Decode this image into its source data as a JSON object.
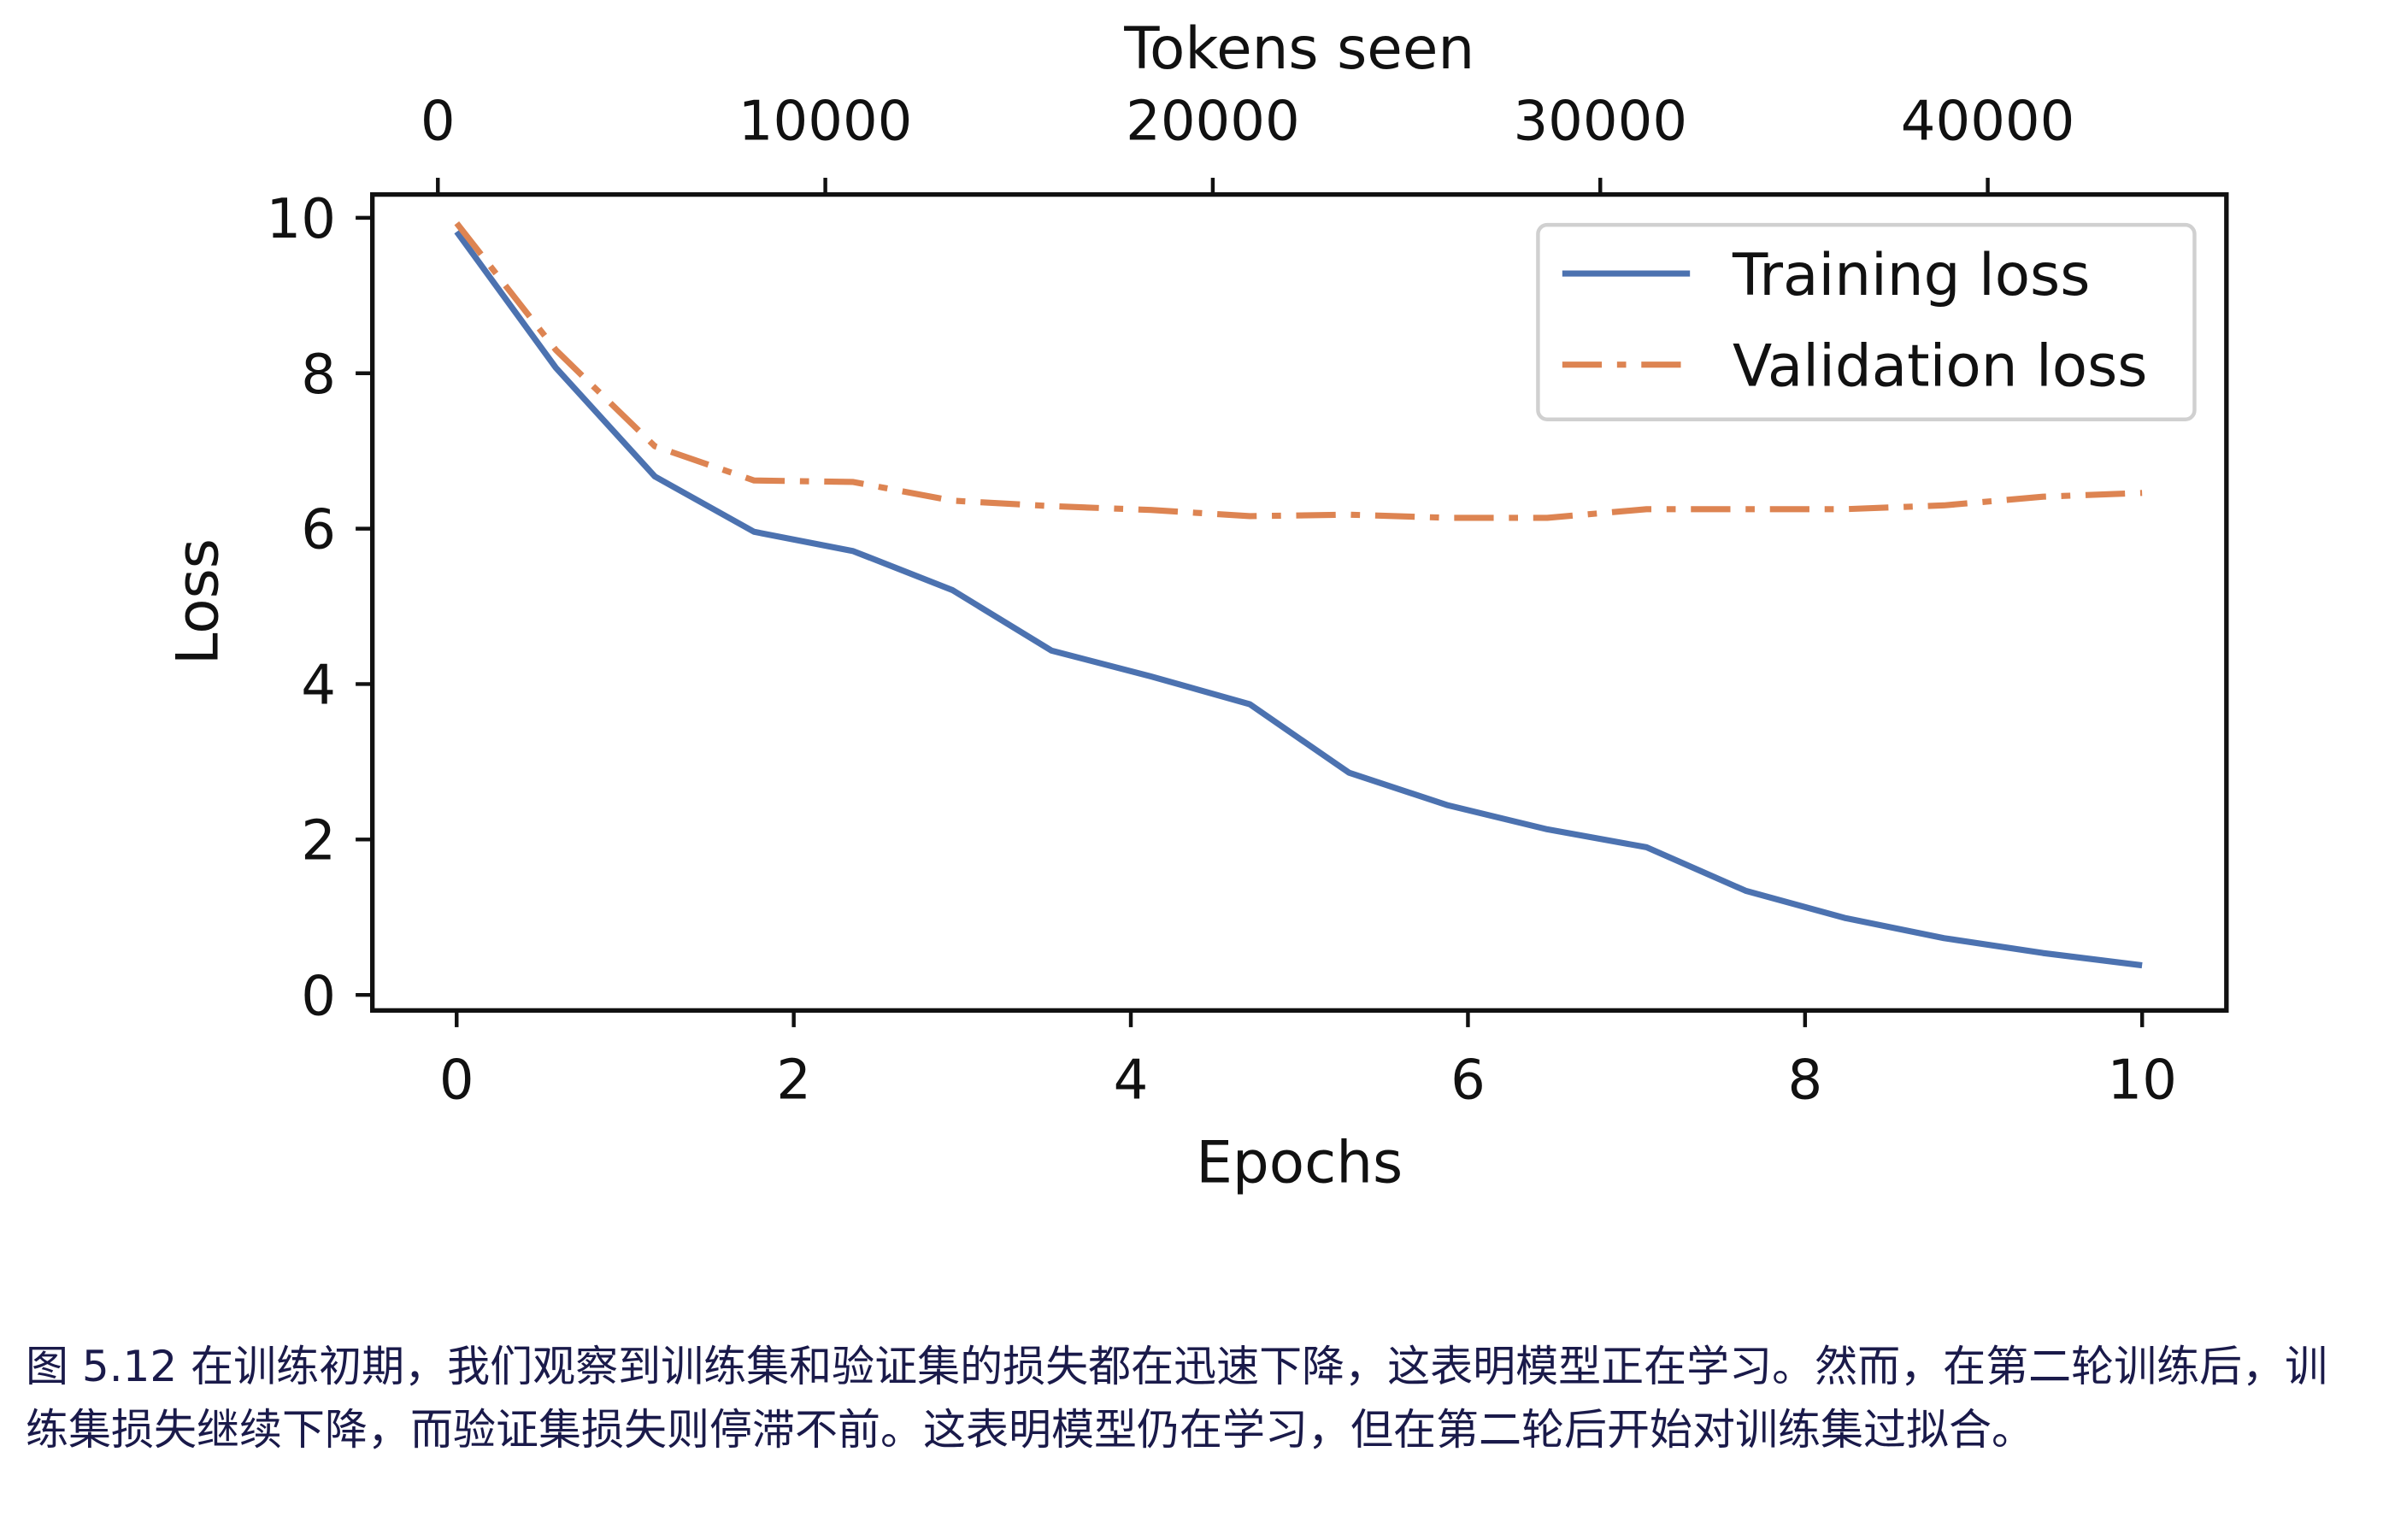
{
  "chart_data": {
    "type": "line",
    "xlabel": "Epochs",
    "ylabel": "Loss",
    "secondary_xlabel": "Tokens seen",
    "xlim": [
      -0.5,
      10.5
    ],
    "ylim": [
      -0.2,
      10.3
    ],
    "secondary_xlim": [
      -1690,
      46160
    ],
    "x_ticks": [
      0,
      2,
      4,
      6,
      8,
      10
    ],
    "y_ticks": [
      0,
      2,
      4,
      6,
      8,
      10
    ],
    "secondary_x_ticks": [
      0,
      10000,
      20000,
      30000,
      40000
    ],
    "grid": false,
    "legend_position": "top-right",
    "x": [
      0,
      0.588,
      1.176,
      1.765,
      2.353,
      2.941,
      3.529,
      4.118,
      4.706,
      5.294,
      5.882,
      6.471,
      7.059,
      7.647,
      8.235,
      8.824,
      9.412,
      10
    ],
    "series": [
      {
        "name": "Training loss",
        "color": "#4c72b0",
        "style": "solid",
        "values": [
          9.82,
          8.07,
          6.67,
          5.96,
          5.71,
          5.21,
          4.43,
          4.1,
          3.74,
          2.86,
          2.44,
          2.13,
          1.9,
          1.34,
          0.99,
          0.73,
          0.54,
          0.38
        ]
      },
      {
        "name": "Validation loss",
        "color": "#dd8452",
        "style": "dashdot",
        "values": [
          9.93,
          8.3,
          7.06,
          6.62,
          6.6,
          6.36,
          6.29,
          6.24,
          6.16,
          6.18,
          6.14,
          6.14,
          6.25,
          6.25,
          6.25,
          6.3,
          6.41,
          6.46
        ]
      }
    ]
  },
  "caption": "图 5.12 在训练初期，我们观察到训练集和验证集的损失都在迅速下降，这表明模型正在学习。然而，在第二轮训练后，训练集损失继续下降，而验证集损失则停滞不前。这表明模型仍在学习，但在第二轮后开始对训练集过拟合。"
}
